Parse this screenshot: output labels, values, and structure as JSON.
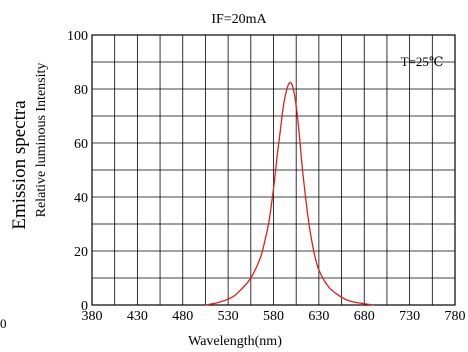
{
  "chart_data": {
    "type": "line",
    "title": "IF=20mA",
    "annotation": "T=25℃",
    "xlabel": "Wavelength(nm)",
    "ylabel": "Emission spectra",
    "ylabel_sub": "Relative luminous Intensity",
    "stray_label": "0",
    "xlim": [
      380,
      780
    ],
    "ylim": [
      0,
      100
    ],
    "xticks": [
      380,
      430,
      480,
      530,
      580,
      630,
      680,
      730,
      780
    ],
    "yticks": [
      0,
      20,
      40,
      60,
      80,
      100
    ],
    "grid": true,
    "colors": {
      "series": "#e0201c",
      "grid": "#000000"
    },
    "series": [
      {
        "x": [
          505,
          520,
          535,
          545,
          555,
          565,
          570,
          575,
          580,
          584,
          588,
          591,
          594,
          597,
          600,
          603,
          606,
          609,
          612,
          616,
          620,
          625,
          630,
          640,
          650,
          660,
          670,
          680,
          690
        ],
        "y": [
          0,
          1,
          3,
          6,
          10,
          17,
          23,
          31,
          43,
          55,
          66,
          74,
          79,
          82,
          82,
          78,
          71,
          61,
          50,
          38,
          28,
          19,
          13,
          7,
          4,
          2,
          1,
          0.5,
          0
        ]
      }
    ]
  }
}
